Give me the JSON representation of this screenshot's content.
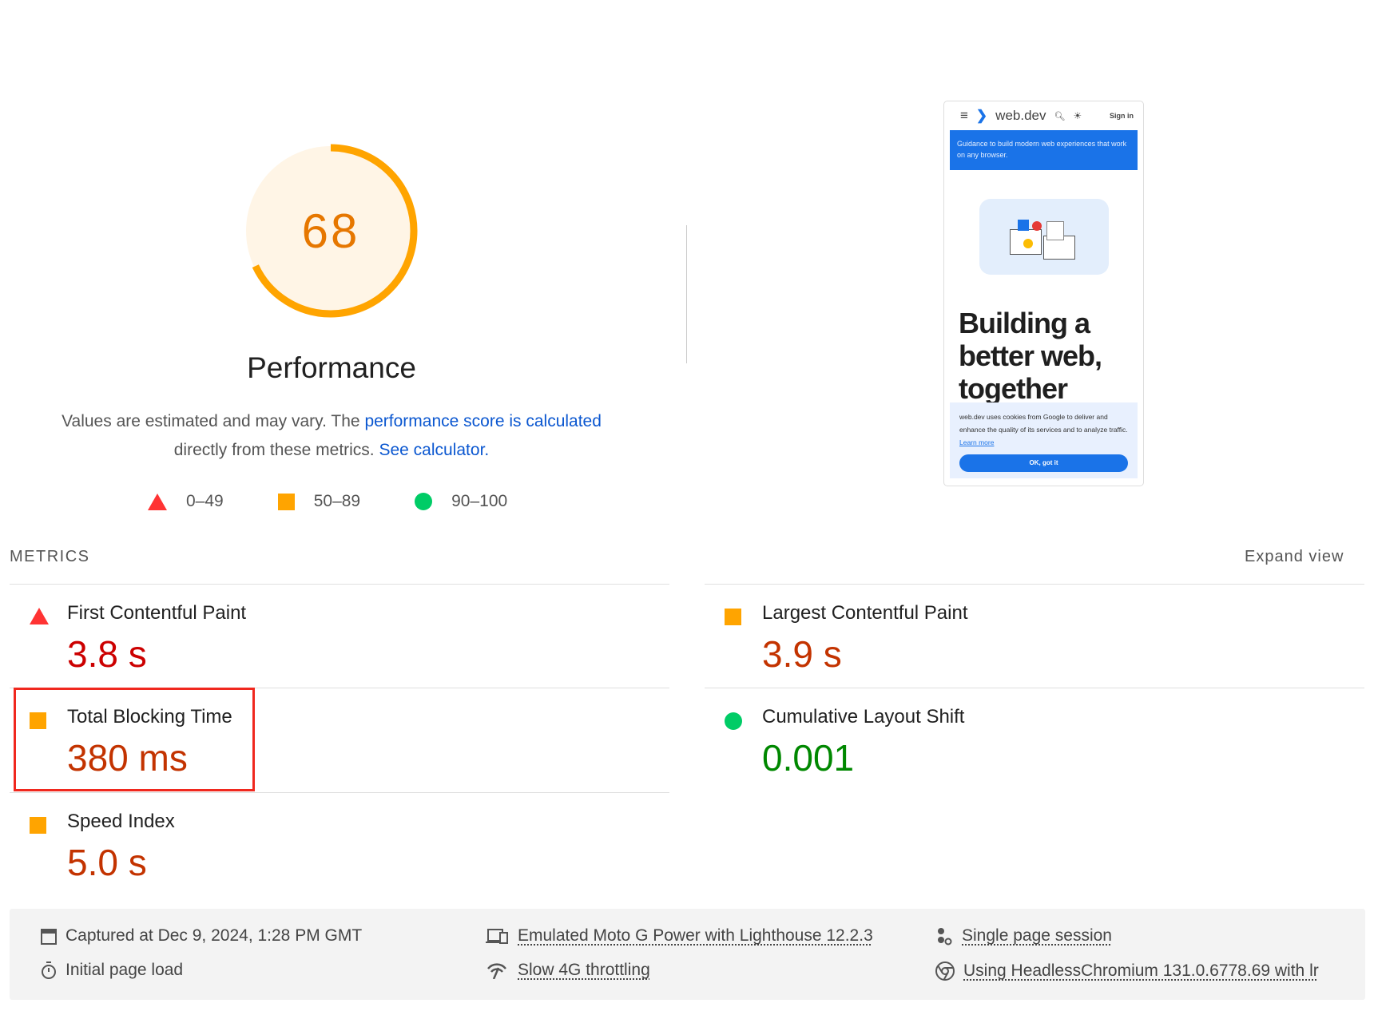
{
  "gauge": {
    "score": "68",
    "score_value": 68,
    "color": "#ffa400",
    "fill": "#fff5e6",
    "label": "Performance"
  },
  "description": {
    "text_before": "Values are estimated and may vary. The ",
    "link1": "performance score is calculated",
    "text_mid": " directly from these metrics. ",
    "link2": "See calculator."
  },
  "legend": [
    {
      "icon": "triangle-red",
      "label": "0–49"
    },
    {
      "icon": "square-orange",
      "label": "50–89"
    },
    {
      "icon": "circle-green",
      "label": "90–100"
    }
  ],
  "screenshot": {
    "brand": "web.dev",
    "sign_in": "Sign in",
    "banner": "Guidance to build modern web experiences that work on any browser.",
    "heading": "Building a better web, together",
    "cookie_text": "web.dev uses cookies from Google to deliver and enhance the quality of its services and to analyze traffic. ",
    "cookie_link": "Learn more",
    "cookie_button": "OK, got it"
  },
  "metrics": {
    "label": "METRICS",
    "expand": "Expand view",
    "items": [
      {
        "title": "First Contentful Paint",
        "value": "3.8 s",
        "rating": "fail"
      },
      {
        "title": "Largest Contentful Paint",
        "value": "3.9 s",
        "rating": "average"
      },
      {
        "title": "Total Blocking Time",
        "value": "380 ms",
        "rating": "average",
        "highlighted": true
      },
      {
        "title": "Cumulative Layout Shift",
        "value": "0.001",
        "rating": "pass"
      },
      {
        "title": "Speed Index",
        "value": "5.0 s",
        "rating": "average"
      }
    ]
  },
  "footer": {
    "captured": "Captured at Dec 9, 2024, 1:28 PM GMT",
    "load": "Initial page load",
    "device": "Emulated Moto G Power with Lighthouse 12.2.3",
    "throttling": "Slow 4G throttling",
    "session": "Single page session",
    "browser": "Using HeadlessChromium 131.0.6778.69 with lr"
  },
  "colors": {
    "fail": "#cc0000",
    "average": "#c33300",
    "pass": "#008800",
    "highlight": "#f0281e"
  }
}
